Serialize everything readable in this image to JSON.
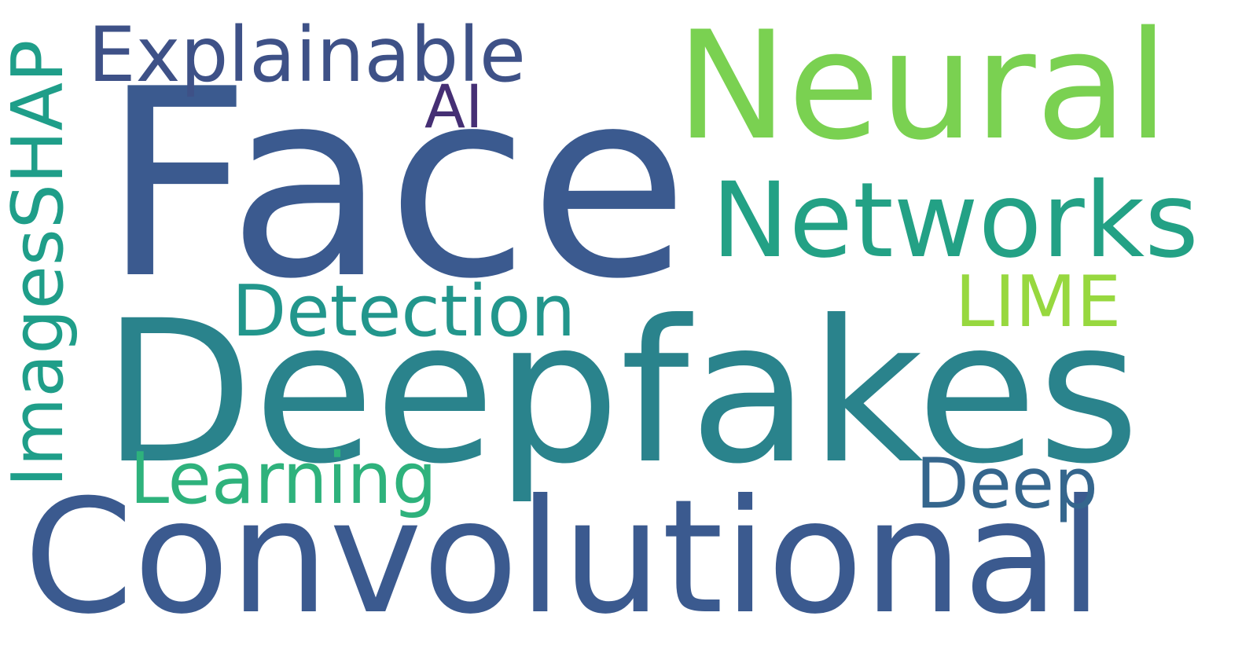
{
  "words": {
    "face": {
      "text": "Face",
      "color": "#3b5a8f"
    },
    "deepfakes": {
      "text": "Deepfakes",
      "color": "#2a838c"
    },
    "convolutional": {
      "text": "Convolutional",
      "color": "#3b5a8f"
    },
    "neural": {
      "text": "Neural",
      "color": "#7ad151"
    },
    "networks": {
      "text": "Networks",
      "color": "#23a185"
    },
    "explainable": {
      "text": "Explainable",
      "color": "#3e5187"
    },
    "detection": {
      "text": "Detection",
      "color": "#22968c"
    },
    "learning": {
      "text": "Learning",
      "color": "#2eb27c"
    },
    "lime": {
      "text": "LIME",
      "color": "#97d83f"
    },
    "deep": {
      "text": "Deep",
      "color": "#35668d"
    },
    "ai": {
      "text": "AI",
      "color": "#452f74"
    },
    "imagesshap": {
      "text": "ImagesSHAP",
      "color": "#1f9e89"
    }
  }
}
